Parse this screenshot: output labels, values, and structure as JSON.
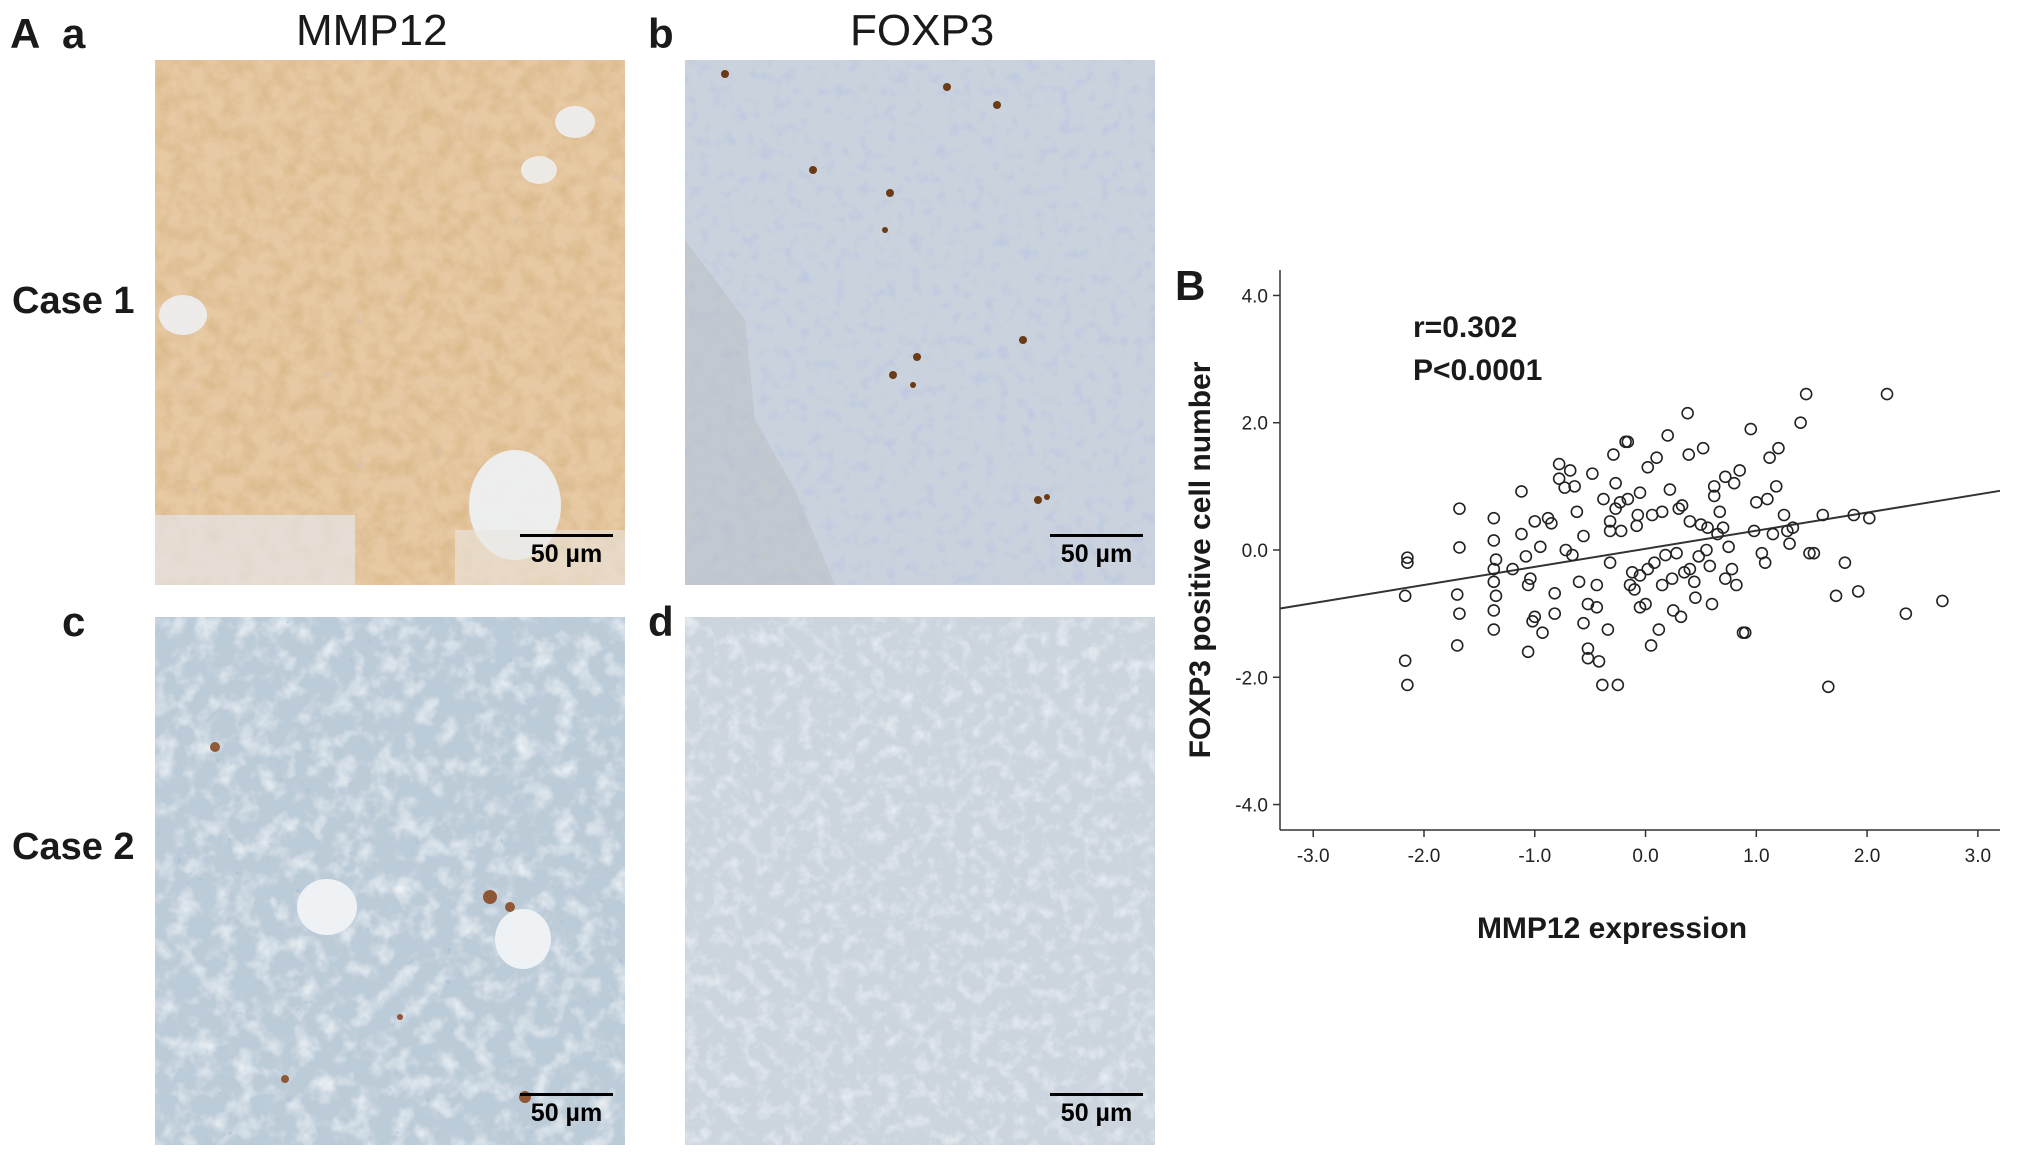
{
  "figure": {
    "panel_A_label": "A",
    "panel_B_label": "B",
    "subpanels": [
      "a",
      "b",
      "c",
      "d"
    ],
    "column_titles": [
      "MMP12",
      "FOXP3"
    ],
    "row_labels": [
      "Case 1",
      "Case 2"
    ],
    "scale_bar_label": "50 µm"
  },
  "colors": {
    "dab_brown": "#b0783e",
    "hematoxylin_blue": "#7c8fc4",
    "background_gray_blue": "#cdd6e0",
    "marker_stroke": "#222222"
  },
  "chart_data": {
    "type": "scatter",
    "xlabel": "MMP12 expression",
    "ylabel": "FOXP3 positive cell number",
    "xlim": [
      -3.3,
      3.2
    ],
    "ylim": [
      -4.4,
      4.4
    ],
    "xticks": [
      "-3.0",
      "-2.0",
      "-1.0",
      "0.0",
      "1.0",
      "2.0",
      "3.0"
    ],
    "xtick_values": [
      -3,
      -2,
      -1,
      0,
      1,
      2,
      3
    ],
    "yticks": [
      "4.0",
      "2.0",
      "0.0",
      "-2.0",
      "-4.0"
    ],
    "ytick_values": [
      4,
      2,
      0,
      -2,
      -4
    ],
    "annotations": [
      "r=0.302",
      "P<0.0001"
    ],
    "fit_line": {
      "x": [
        -3.3,
        3.2
      ],
      "y": [
        -0.92,
        0.93
      ]
    },
    "marker": "open-circle",
    "grid": false,
    "points": [
      [
        -2.15,
        -0.12
      ],
      [
        -2.15,
        -0.2
      ],
      [
        -2.17,
        -0.72
      ],
      [
        -2.17,
        -1.74
      ],
      [
        -2.15,
        -2.12
      ],
      [
        -1.68,
        0.65
      ],
      [
        -1.68,
        0.04
      ],
      [
        -1.7,
        -0.7
      ],
      [
        -1.68,
        -1.0
      ],
      [
        -1.7,
        -1.5
      ],
      [
        -1.37,
        0.5
      ],
      [
        -1.37,
        0.15
      ],
      [
        -1.35,
        -0.15
      ],
      [
        -1.37,
        -0.3
      ],
      [
        -1.37,
        -0.5
      ],
      [
        -1.35,
        -0.72
      ],
      [
        -1.37,
        -1.25
      ],
      [
        -1.37,
        -0.95
      ],
      [
        -1.12,
        0.92
      ],
      [
        -1.12,
        0.25
      ],
      [
        -1.08,
        -0.1
      ],
      [
        -1.04,
        -0.45
      ],
      [
        -1.06,
        -0.55
      ],
      [
        -1.02,
        -1.12
      ],
      [
        -1.06,
        -1.6
      ],
      [
        -1.0,
        -1.05
      ],
      [
        -1.0,
        0.45
      ],
      [
        -0.95,
        0.05
      ],
      [
        -0.93,
        -1.3
      ],
      [
        -0.85,
        0.42
      ],
      [
        -0.88,
        0.5
      ],
      [
        -0.82,
        -0.68
      ],
      [
        -0.82,
        -1.0
      ],
      [
        -0.78,
        1.35
      ],
      [
        -0.78,
        1.12
      ],
      [
        -0.73,
        0.98
      ],
      [
        -0.68,
        1.25
      ],
      [
        -0.72,
        0.0
      ],
      [
        -0.66,
        -0.08
      ],
      [
        -0.64,
        1.0
      ],
      [
        -0.6,
        -0.5
      ],
      [
        -0.56,
        0.22
      ],
      [
        -0.52,
        -0.85
      ],
      [
        -0.56,
        -1.15
      ],
      [
        -0.52,
        -1.55
      ],
      [
        -0.52,
        -1.7
      ],
      [
        -0.48,
        1.2
      ],
      [
        -0.44,
        -0.55
      ],
      [
        -0.44,
        -0.9
      ],
      [
        -0.42,
        -1.75
      ],
      [
        -0.39,
        -2.12
      ],
      [
        -0.38,
        0.8
      ],
      [
        -0.32,
        0.3
      ],
      [
        -0.32,
        0.45
      ],
      [
        -0.32,
        -0.2
      ],
      [
        -0.34,
        -1.25
      ],
      [
        -0.29,
        1.5
      ],
      [
        -0.27,
        1.05
      ],
      [
        -0.27,
        0.65
      ],
      [
        -0.23,
        0.75
      ],
      [
        -0.25,
        -2.12
      ],
      [
        -0.22,
        0.3
      ],
      [
        -0.18,
        1.7
      ],
      [
        -0.16,
        1.7
      ],
      [
        -0.16,
        0.8
      ],
      [
        -0.14,
        -0.55
      ],
      [
        -0.12,
        -0.35
      ],
      [
        -0.1,
        -0.62
      ],
      [
        -0.08,
        0.38
      ],
      [
        -0.07,
        0.55
      ],
      [
        -0.05,
        -0.4
      ],
      [
        -0.05,
        -0.9
      ],
      [
        0.0,
        -0.85
      ],
      [
        0.02,
        -0.3
      ],
      [
        0.02,
        1.3
      ],
      [
        0.05,
        -1.5
      ],
      [
        0.06,
        0.55
      ],
      [
        0.08,
        -0.2
      ],
      [
        0.1,
        1.45
      ],
      [
        0.12,
        -1.25
      ],
      [
        0.15,
        0.6
      ],
      [
        0.15,
        -0.55
      ],
      [
        0.2,
        1.8
      ],
      [
        0.22,
        0.95
      ],
      [
        0.24,
        -0.45
      ],
      [
        0.25,
        -0.95
      ],
      [
        0.28,
        -0.05
      ],
      [
        0.3,
        0.65
      ],
      [
        0.32,
        -1.05
      ],
      [
        0.33,
        0.7
      ],
      [
        0.35,
        -0.35
      ],
      [
        0.38,
        2.15
      ],
      [
        0.39,
        1.5
      ],
      [
        0.4,
        -0.3
      ],
      [
        0.4,
        0.45
      ],
      [
        0.44,
        -0.5
      ],
      [
        0.45,
        -0.75
      ],
      [
        0.48,
        -0.1
      ],
      [
        0.5,
        0.4
      ],
      [
        0.52,
        1.6
      ],
      [
        0.55,
        0.0
      ],
      [
        0.56,
        0.35
      ],
      [
        0.58,
        -0.25
      ],
      [
        0.62,
        0.85
      ],
      [
        0.62,
        1.0
      ],
      [
        0.65,
        0.25
      ],
      [
        0.67,
        0.6
      ],
      [
        0.7,
        0.35
      ],
      [
        0.72,
        1.15
      ],
      [
        0.72,
        -0.45
      ],
      [
        0.75,
        0.05
      ],
      [
        0.78,
        -0.3
      ],
      [
        0.8,
        1.05
      ],
      [
        0.82,
        -0.55
      ],
      [
        0.85,
        1.25
      ],
      [
        0.88,
        -1.3
      ],
      [
        0.9,
        -1.3
      ],
      [
        0.95,
        1.9
      ],
      [
        0.98,
        0.3
      ],
      [
        1.0,
        0.75
      ],
      [
        1.05,
        -0.05
      ],
      [
        1.08,
        -0.2
      ],
      [
        1.1,
        0.8
      ],
      [
        1.12,
        1.45
      ],
      [
        1.15,
        0.25
      ],
      [
        1.18,
        1.0
      ],
      [
        1.2,
        1.6
      ],
      [
        1.25,
        0.55
      ],
      [
        1.28,
        0.3
      ],
      [
        1.3,
        0.1
      ],
      [
        1.33,
        0.35
      ],
      [
        1.4,
        2.0
      ],
      [
        1.45,
        2.45
      ],
      [
        1.48,
        -0.05
      ],
      [
        1.52,
        -0.05
      ],
      [
        1.6,
        0.55
      ],
      [
        1.65,
        -2.15
      ],
      [
        1.72,
        -0.72
      ],
      [
        1.8,
        -0.2
      ],
      [
        1.88,
        0.55
      ],
      [
        1.92,
        -0.65
      ],
      [
        2.02,
        0.5
      ],
      [
        2.18,
        2.45
      ],
      [
        2.35,
        -1.0
      ],
      [
        2.68,
        -0.8
      ],
      [
        -0.62,
        0.6
      ],
      [
        0.18,
        -0.08
      ],
      [
        -0.05,
        0.9
      ],
      [
        0.6,
        -0.85
      ],
      [
        -1.2,
        -0.3
      ]
    ]
  }
}
